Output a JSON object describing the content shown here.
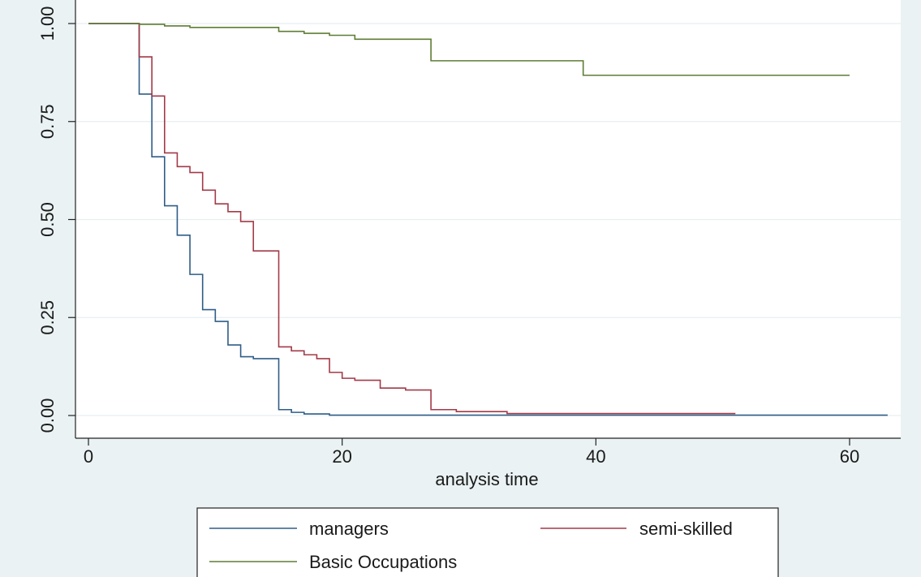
{
  "chart_data": {
    "type": "line",
    "step": true,
    "title": "",
    "xlabel": "analysis time",
    "ylabel": "",
    "xlim": [
      0,
      63
    ],
    "ylim": [
      0,
      1
    ],
    "x_ticks": [
      0,
      20,
      40,
      60
    ],
    "x_tick_labels": [
      "0",
      "20",
      "40",
      "60"
    ],
    "y_ticks": [
      0,
      0.25,
      0.5,
      0.75,
      1
    ],
    "y_tick_labels": [
      "0.00",
      "0.25",
      "0.50",
      "0.75",
      "1.00"
    ],
    "grid": true,
    "legend_position": "bottom",
    "series": [
      {
        "name": "managers",
        "color": "#2f5d87",
        "x": [
          0,
          4,
          5,
          6,
          7,
          8,
          9,
          10,
          11,
          12,
          13,
          15,
          16,
          17,
          19,
          63
        ],
        "y": [
          1.0,
          0.82,
          0.66,
          0.535,
          0.46,
          0.36,
          0.27,
          0.24,
          0.18,
          0.15,
          0.145,
          0.015,
          0.008,
          0.004,
          0.001,
          0.001
        ]
      },
      {
        "name": "semi-skilled",
        "color": "#a23a48",
        "x": [
          0,
          4,
          5,
          6,
          7,
          8,
          9,
          10,
          11,
          12,
          13,
          15,
          16,
          17,
          18,
          19,
          20,
          21,
          23,
          25,
          27,
          29,
          33,
          51
        ],
        "y": [
          1.0,
          0.915,
          0.815,
          0.67,
          0.635,
          0.62,
          0.575,
          0.54,
          0.52,
          0.495,
          0.42,
          0.175,
          0.165,
          0.155,
          0.145,
          0.11,
          0.095,
          0.09,
          0.07,
          0.065,
          0.015,
          0.01,
          0.005,
          0.005
        ]
      },
      {
        "name": "Basic Occupations",
        "color": "#5e7d34",
        "x": [
          0,
          4,
          6,
          8,
          15,
          17,
          19,
          21,
          27,
          39,
          60
        ],
        "y": [
          1.0,
          0.998,
          0.994,
          0.99,
          0.98,
          0.975,
          0.97,
          0.96,
          0.905,
          0.868,
          0.868
        ]
      }
    ]
  }
}
